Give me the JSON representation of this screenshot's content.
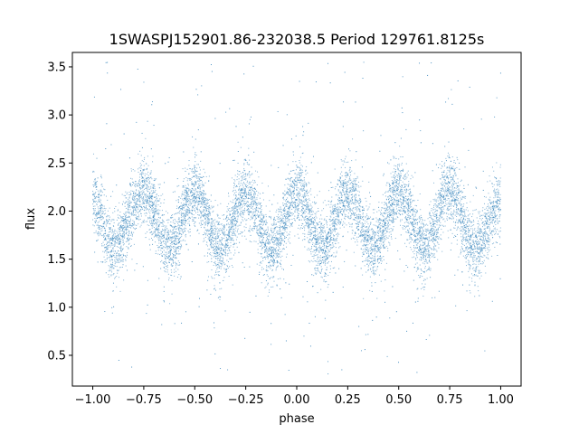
{
  "chart_data": {
    "type": "scatter",
    "title": "1SWASPJ152901.86-232038.5 Period 129761.8125s",
    "xlabel": "phase",
    "ylabel": "flux",
    "xlim": [
      -1.1,
      1.1
    ],
    "ylim": [
      0.18,
      3.65
    ],
    "xticks": [
      -1.0,
      -0.75,
      -0.5,
      -0.25,
      0.0,
      0.25,
      0.5,
      0.75,
      1.0
    ],
    "xtick_labels": [
      "−1.00",
      "−0.75",
      "−0.50",
      "−0.25",
      "0.00",
      "0.25",
      "0.50",
      "0.75",
      "1.00"
    ],
    "yticks": [
      0.5,
      1.0,
      1.5,
      2.0,
      2.5,
      3.0,
      3.5
    ],
    "ytick_labels": [
      "0.5",
      "1.0",
      "1.5",
      "2.0",
      "2.5",
      "3.0",
      "3.5"
    ],
    "grid": false,
    "legend": "none",
    "point_color": "#1f77b4",
    "x_range": [
      -1.0,
      1.0
    ],
    "trend": {
      "x": [
        -1.0,
        -0.9,
        -0.75,
        -0.625,
        -0.5,
        -0.375,
        -0.25,
        -0.125,
        0.0,
        0.125,
        0.25,
        0.375,
        0.5,
        0.625,
        0.75,
        0.875,
        1.0
      ],
      "y": [
        2.12,
        1.62,
        2.2,
        1.62,
        2.2,
        1.6,
        2.2,
        1.6,
        2.2,
        1.62,
        2.18,
        1.62,
        2.2,
        1.6,
        2.22,
        1.6,
        2.1
      ]
    },
    "scatter_sd": 0.17,
    "outlier_range": [
      0.3,
      3.55
    ]
  }
}
